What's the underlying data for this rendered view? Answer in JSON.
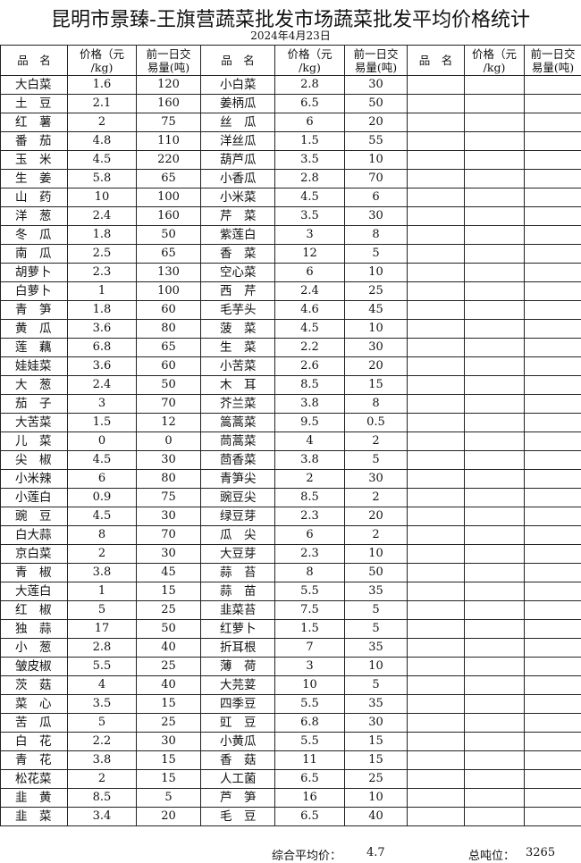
{
  "title": "昆明市景臻-王旗营蔬菜批发市场蔬菜批发平均价格统计",
  "date": "2024年4月23日",
  "headers": {
    "name": "品　名",
    "price": "价格（元\n/kg)",
    "volume": "前一日交\n易量(吨)"
  },
  "rows": [
    [
      "大白菜",
      "1.6",
      "120",
      "小白菜",
      "2.8",
      "30"
    ],
    [
      "土　豆",
      "2.1",
      "160",
      "姜柄瓜",
      "6.5",
      "50"
    ],
    [
      "红　薯",
      "2",
      "75",
      "丝　瓜",
      "6",
      "20"
    ],
    [
      "番　茄",
      "4.8",
      "110",
      "洋丝瓜",
      "1.5",
      "55"
    ],
    [
      "玉　米",
      "4.5",
      "220",
      "葫芦瓜",
      "3.5",
      "10"
    ],
    [
      "生　姜",
      "5.8",
      "65",
      "小香瓜",
      "2.8",
      "70"
    ],
    [
      "山　药",
      "10",
      "100",
      "小米菜",
      "4.5",
      "6"
    ],
    [
      "洋　葱",
      "2.4",
      "160",
      "芹　菜",
      "3.5",
      "30"
    ],
    [
      "冬　瓜",
      "1.8",
      "50",
      "紫莲白",
      "3",
      "8"
    ],
    [
      "南　瓜",
      "2.5",
      "65",
      "香　菜",
      "12",
      "5"
    ],
    [
      "胡萝卜",
      "2.3",
      "130",
      "空心菜",
      "6",
      "10"
    ],
    [
      "白萝卜",
      "1",
      "100",
      "西　芹",
      "2.4",
      "25"
    ],
    [
      "青　笋",
      "1.8",
      "60",
      "毛芋头",
      "4.6",
      "45"
    ],
    [
      "黄　瓜",
      "3.6",
      "80",
      "菠　菜",
      "4.5",
      "10"
    ],
    [
      "莲　藕",
      "6.8",
      "65",
      "生　菜",
      "2.2",
      "30"
    ],
    [
      "娃娃菜",
      "3.6",
      "60",
      "小苦菜",
      "2.6",
      "20"
    ],
    [
      "大　葱",
      "2.4",
      "50",
      "木　耳",
      "8.5",
      "15"
    ],
    [
      "茄　子",
      "3",
      "70",
      "芥兰菜",
      "3.8",
      "8"
    ],
    [
      "大苦菜",
      "1.5",
      "12",
      "篙蒿菜",
      "9.5",
      "0.5"
    ],
    [
      "儿　菜",
      "0",
      "0",
      "茼蒿菜",
      "4",
      "2"
    ],
    [
      "尖　椒",
      "4.5",
      "30",
      "茴香菜",
      "3.8",
      "5"
    ],
    [
      "小米辣",
      "6",
      "80",
      "青笋尖",
      "2",
      "30"
    ],
    [
      "小莲白",
      "0.9",
      "75",
      "豌豆尖",
      "8.5",
      "2"
    ],
    [
      "豌　豆",
      "4.5",
      "30",
      "绿豆芽",
      "2.3",
      "20"
    ],
    [
      "白大蒜",
      "8",
      "70",
      "瓜　尖",
      "6",
      "2"
    ],
    [
      "京白菜",
      "2",
      "30",
      "大豆芽",
      "2.3",
      "10"
    ],
    [
      "青　椒",
      "3.8",
      "45",
      "蒜　苔",
      "8",
      "50"
    ],
    [
      "大莲白",
      "1",
      "15",
      "蒜　苗",
      "5.5",
      "35"
    ],
    [
      "红　椒",
      "5",
      "25",
      "韭菜苔",
      "7.5",
      "5"
    ],
    [
      "独　蒜",
      "17",
      "50",
      "红萝卜",
      "1.5",
      "5"
    ],
    [
      "小　葱",
      "2.8",
      "40",
      "折耳根",
      "7",
      "35"
    ],
    [
      "皱皮椒",
      "5.5",
      "25",
      "薄　荷",
      "3",
      "10"
    ],
    [
      "茨　菇",
      "4",
      "40",
      "大芫荽",
      "10",
      "5"
    ],
    [
      "菜　心",
      "3.5",
      "15",
      "四季豆",
      "5.5",
      "35"
    ],
    [
      "苦　瓜",
      "5",
      "25",
      "豇　豆",
      "6.8",
      "30"
    ],
    [
      "白　花",
      "2.2",
      "30",
      "小黄瓜",
      "5.5",
      "15"
    ],
    [
      "青　花",
      "3.8",
      "15",
      "香　菇",
      "11",
      "15"
    ],
    [
      "松花菜",
      "2",
      "15",
      "人工菌",
      "6.5",
      "25"
    ],
    [
      "韭　黄",
      "8.5",
      "5",
      "芦　笋",
      "16",
      "10"
    ],
    [
      "韭　菜",
      "3.4",
      "20",
      "毛　豆",
      "6.5",
      "40"
    ]
  ],
  "footer": {
    "avg_label": "综合平均价：",
    "avg_value": "4.7",
    "total_label": "总吨位：",
    "total_value": "3265"
  }
}
